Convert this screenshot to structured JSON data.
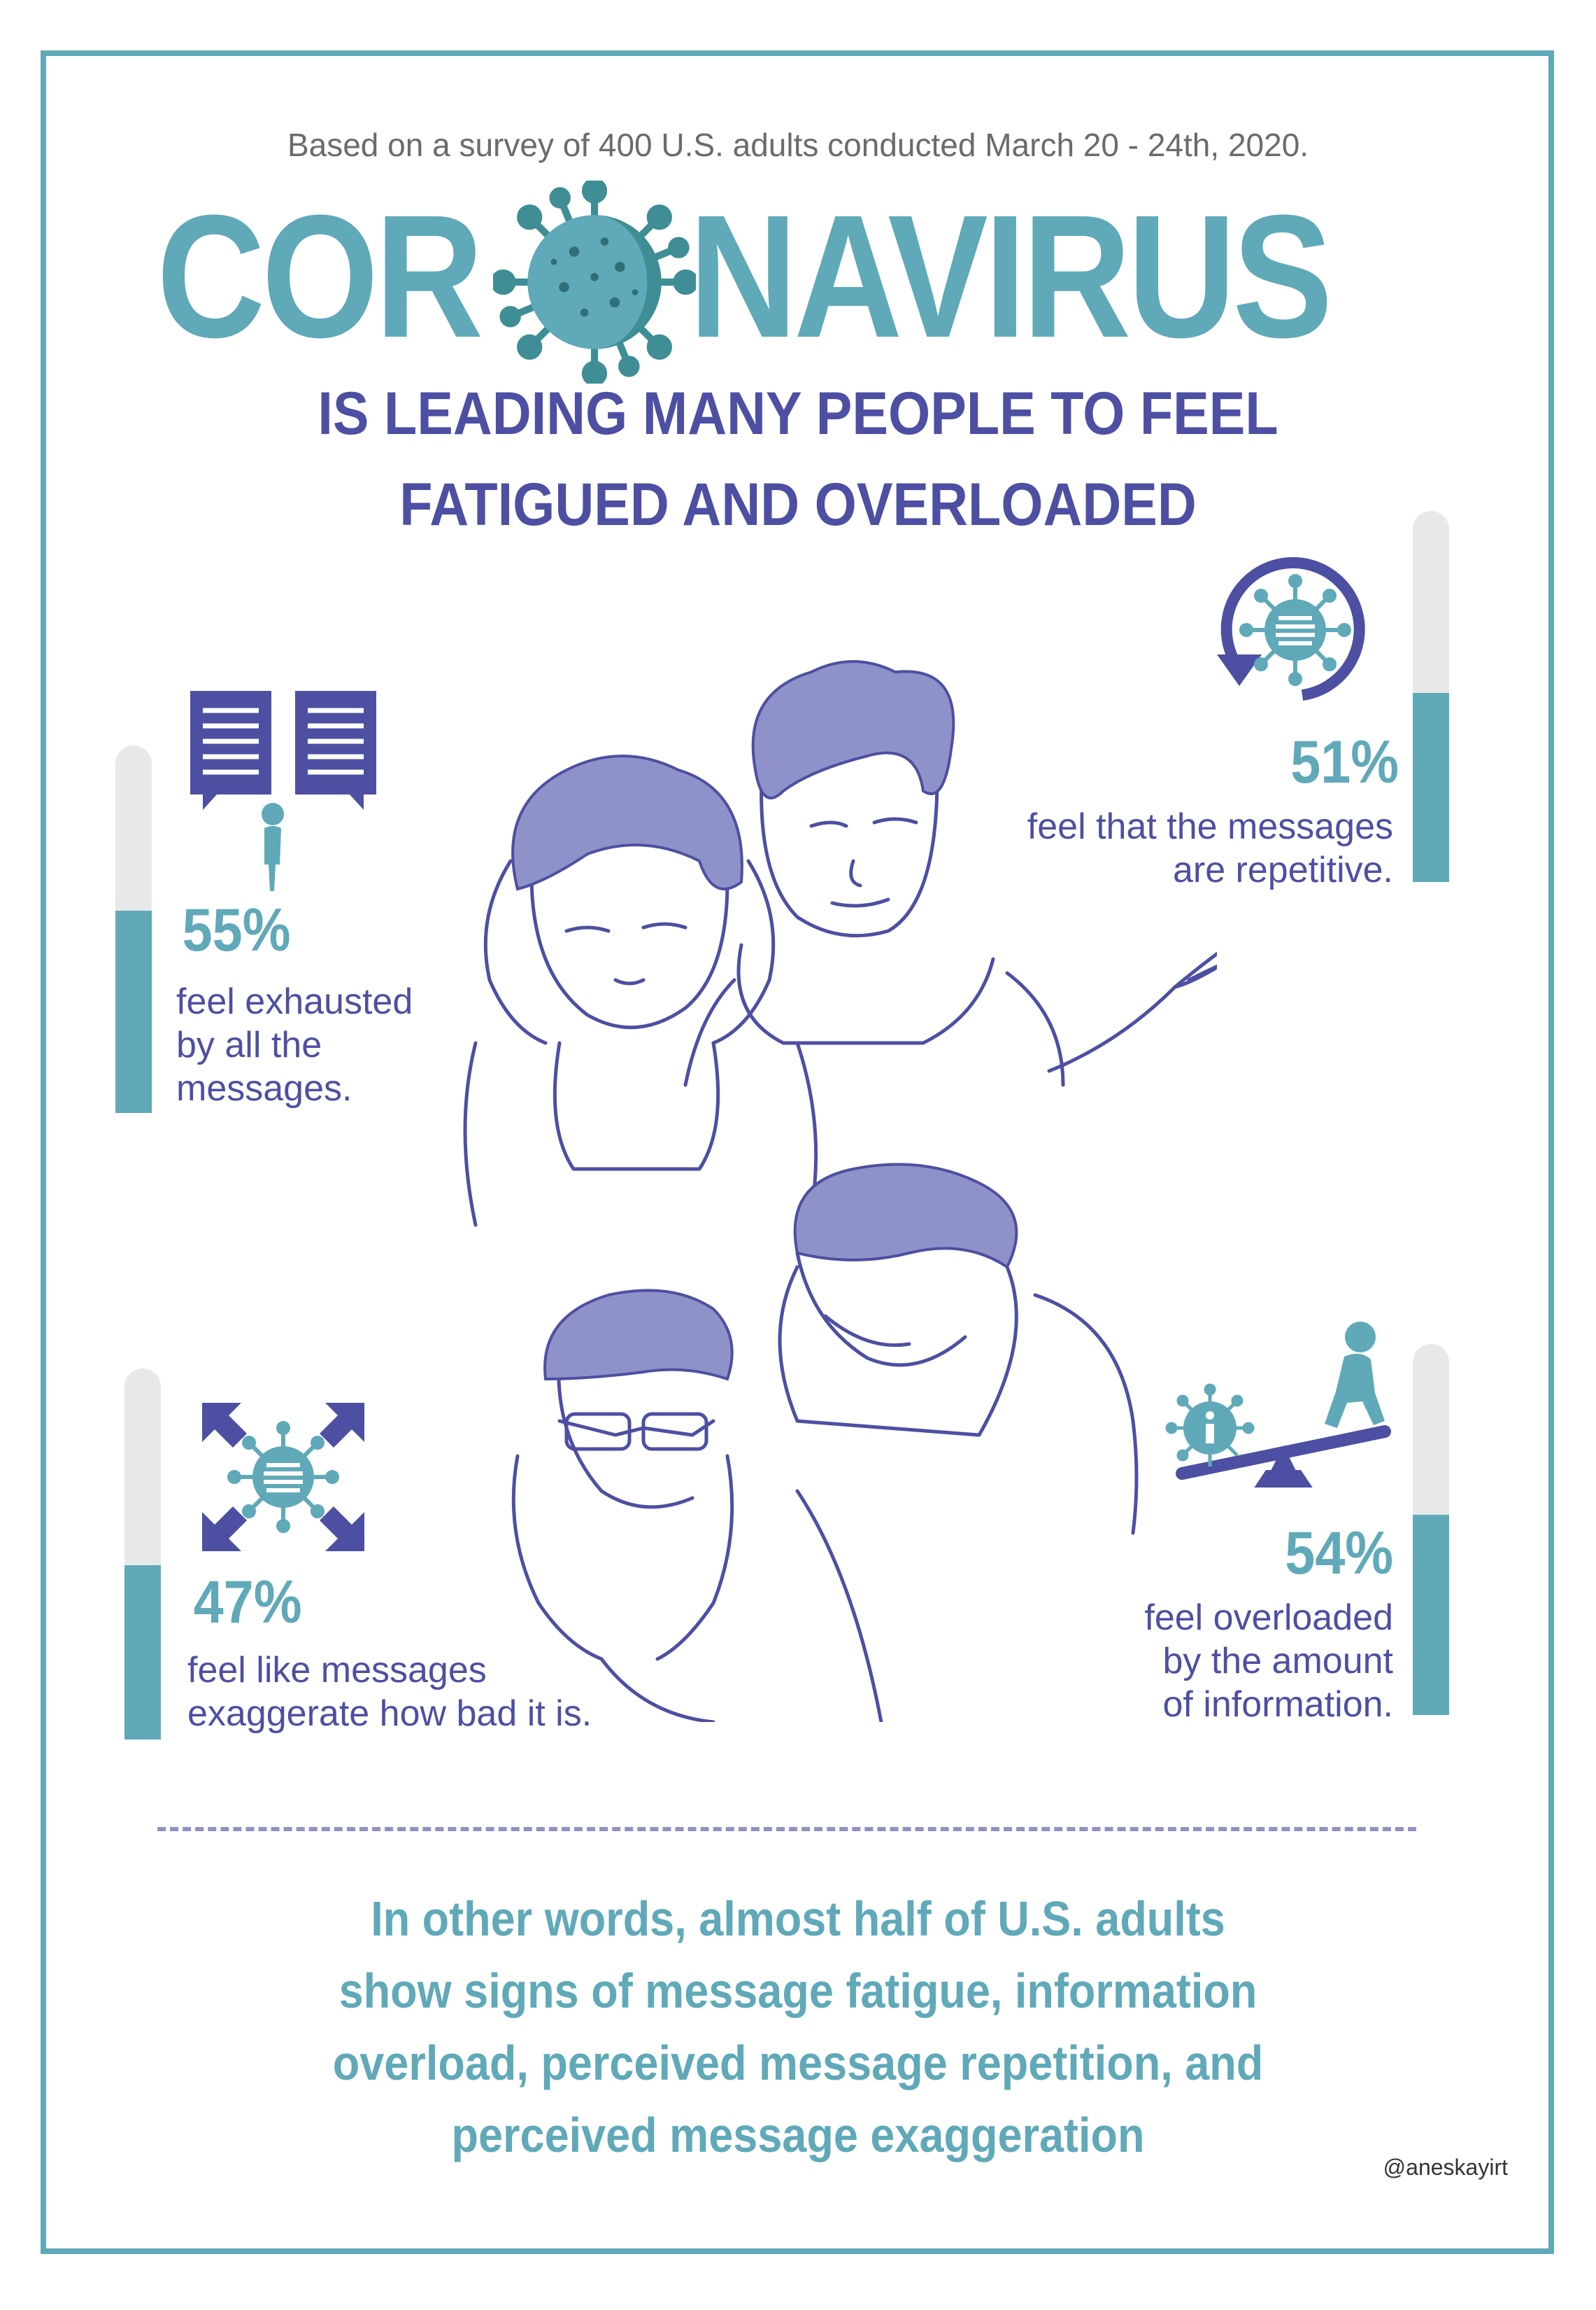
{
  "header": {
    "survey_note": "Based on a survey of 400 U.S. adults conducted March 20 - 24th, 2020.",
    "title_left": "COR",
    "title_right": "NAVIRUS",
    "subtitle_line1": "IS LEADING MANY PEOPLE TO FEEL",
    "subtitle_line2": "FATIGUED AND OVERLOADED"
  },
  "stats": {
    "exhausted": {
      "percent": "55%",
      "value": 0.55,
      "line1": "feel exhausted",
      "line2": "by all the",
      "line3": "messages.",
      "icon": "speech-bubbles-person-icon"
    },
    "repetitive": {
      "percent": "51%",
      "value": 0.51,
      "line1": "feel that the messages",
      "line2": "are repetitive.",
      "icon": "repeat-virus-icon"
    },
    "exaggerate": {
      "percent": "47%",
      "value": 0.47,
      "line1": "feel like messages",
      "line2": "exaggerate how bad it is.",
      "icon": "expand-virus-icon"
    },
    "overloaded": {
      "percent": "54%",
      "value": 0.54,
      "line1": "feel overloaded",
      "line2": "by the amount",
      "line3": "of information.",
      "icon": "seesaw-info-icon"
    }
  },
  "conclusion": {
    "line1": "In other words, almost half of U.S. adults",
    "line2": "show signs of message fatigue, information",
    "line3": "overload, perceived message repetition, and",
    "line4": "perceived message exaggeration"
  },
  "credit": "@aneskayirt",
  "colors": {
    "teal": "#5fa9b8",
    "indigo": "#4d4fa3",
    "hair": "#8f92c8",
    "bar_track": "#e7e8ea"
  }
}
